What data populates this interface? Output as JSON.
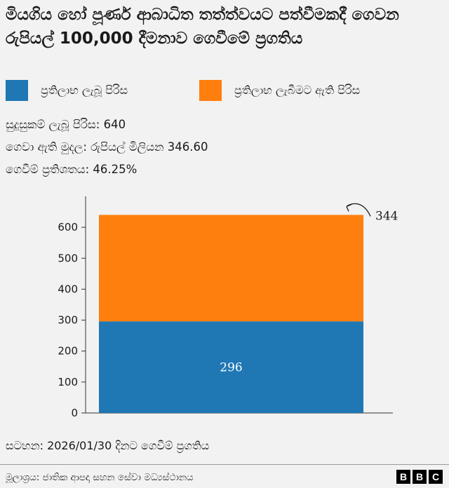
{
  "title": "මියගිය හෝ පූර්ණ ආබාධිත තත්ත්වයට පත්වීමකදී ගෙවන රුපියල් 100,000 දීමනාව ගෙවීමේ ප්‍රගතිය",
  "legend": {
    "received": {
      "label": "ප්‍රතිලාභ ලැබූ පිරිස",
      "color": "#1f77b4"
    },
    "pending": {
      "label": "ප්‍රතිලාභ ලැබීමට ඇති පිරිස",
      "color": "#ff7f0e"
    }
  },
  "stats": {
    "eligible": "සුදුසුකම් ලැබූ පිරිස: 640",
    "paid_amount": "ගෙවා ඇති මුදල: රුපියල් මිලියන 346.60",
    "paid_percent": "ගෙවීම් ප්‍රතිශතය: 46.25%"
  },
  "note": "සටහන: 2026/01/30 දිනට ගෙවීම් ප්‍රගතිය",
  "source": "මූලාශ්‍රය: ජාතික ආපදා සහන සේවා මධ්‍යස්ථානය",
  "logo": {
    "letters": [
      "B",
      "B",
      "C"
    ]
  },
  "chart_data": {
    "type": "bar",
    "stacked": true,
    "categories": [
      ""
    ],
    "series": [
      {
        "name": "ප්‍රතිලාභ ලැබූ පිරිස",
        "values": [
          296
        ],
        "color": "#1f77b4",
        "label": "296"
      },
      {
        "name": "ප්‍රතිලාභ ලැබීමට ඇති පිරිස",
        "values": [
          344
        ],
        "color": "#ff7f0e",
        "label": "344"
      }
    ],
    "yticks": [
      0,
      100,
      200,
      300,
      400,
      500,
      600
    ],
    "ylim": [
      0,
      700
    ],
    "grid": false,
    "legend_position": "top"
  }
}
